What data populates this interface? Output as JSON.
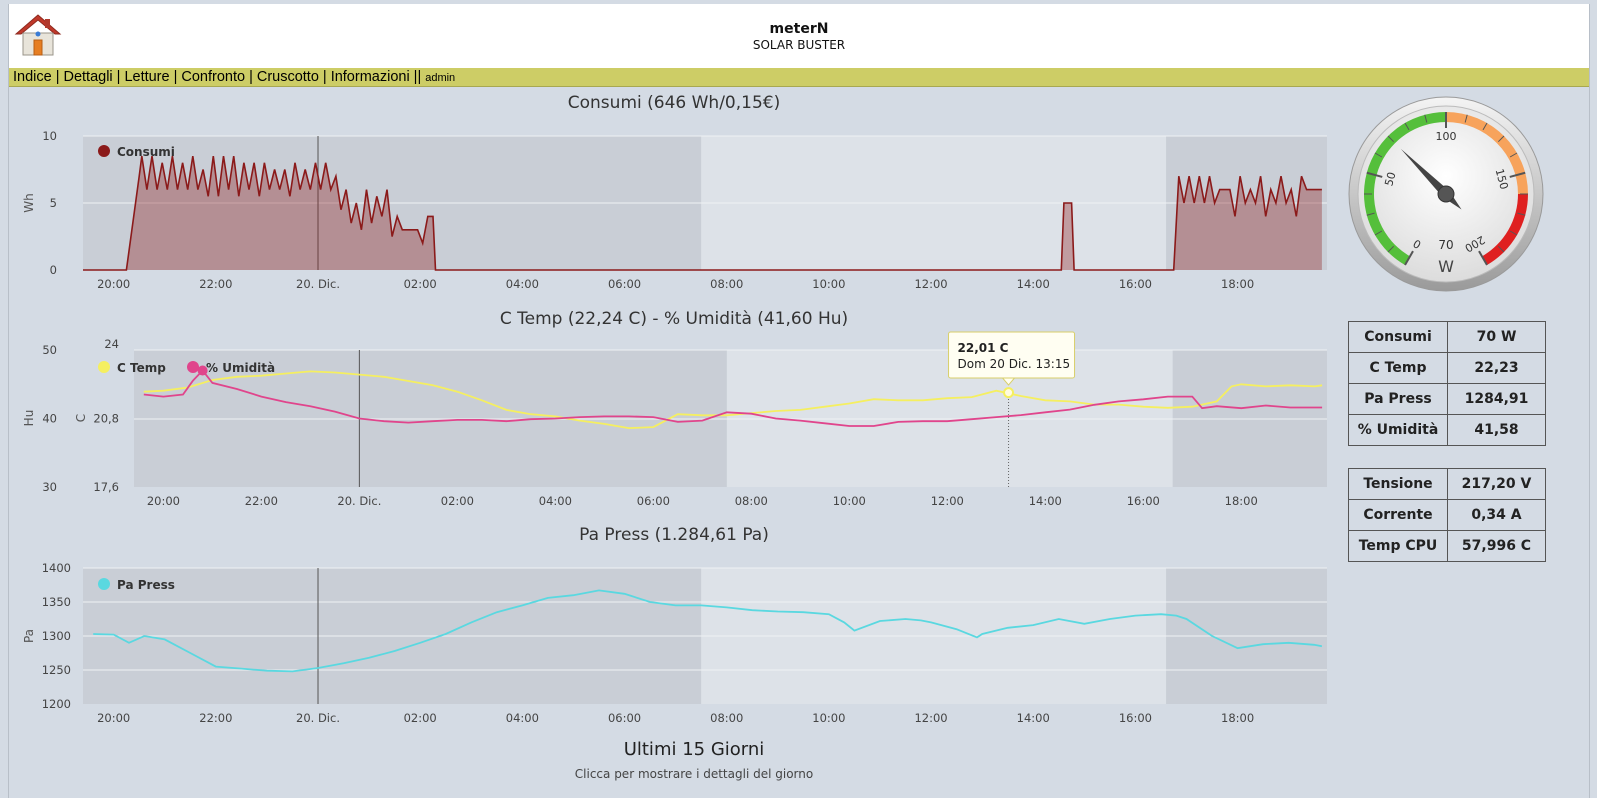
{
  "header": {
    "title": "meterN",
    "subtitle": "SOLAR BUSTER",
    "logo_icon": "house-icon"
  },
  "nav": {
    "items": [
      "Indice",
      "Dettagli",
      "Letture",
      "Confronto",
      "Cruscotto",
      "Informazioni"
    ],
    "user": "admin"
  },
  "gauge": {
    "value": 70,
    "value_label": "70",
    "unit": "W",
    "min": 0,
    "max": 200,
    "tick_labels": [
      "0",
      "50",
      "100",
      "150",
      "200"
    ],
    "bands": [
      {
        "from": 0,
        "to": 100,
        "color": "#55bf3b"
      },
      {
        "from": 100,
        "to": 160,
        "color": "#f7a35c"
      },
      {
        "from": 160,
        "to": 200,
        "color": "#df2020"
      }
    ]
  },
  "info_table_1": [
    {
      "label": "Consumi",
      "value": "70 W"
    },
    {
      "label": "C Temp",
      "value": "22,23"
    },
    {
      "label": "Pa Press",
      "value": "1284,91"
    },
    {
      "label": "% Umidità",
      "value": "41,58"
    }
  ],
  "info_table_2": [
    {
      "label": "Tensione",
      "value": "217,20 V"
    },
    {
      "label": "Corrente",
      "value": "0,34 A"
    },
    {
      "label": "Temp CPU",
      "value": "57,996 C"
    }
  ],
  "footer": {
    "title": "Ultimi 15 Giorni",
    "subtitle": "Clicca per mostrare i dettagli del giorno"
  },
  "chart_data": [
    {
      "type": "area",
      "title": "Consumi (646 Wh/0,15€)",
      "ylabel": "Wh",
      "ylim": [
        0,
        10
      ],
      "yticks": [
        "0",
        "5",
        "10"
      ],
      "xlim": [
        19.4,
        43.75
      ],
      "xticks": [
        "20:00",
        "22:00",
        "20. Dic.",
        "02:00",
        "04:00",
        "06:00",
        "08:00",
        "10:00",
        "12:00",
        "14:00",
        "16:00",
        "18:00"
      ],
      "night_bands": [
        [
          19.4,
          31.5
        ],
        [
          40.6,
          43.75
        ]
      ],
      "midnight": 24,
      "legend": "top-left",
      "series": [
        {
          "name": "Consumi",
          "color": "#8b1a1a",
          "x": [
            19.4,
            20.25,
            20.5,
            20.55,
            20.65,
            20.75,
            20.85,
            20.95,
            21.05,
            21.15,
            21.25,
            21.35,
            21.45,
            21.55,
            21.65,
            21.75,
            21.85,
            21.95,
            22.05,
            22.15,
            22.25,
            22.35,
            22.45,
            22.55,
            22.65,
            22.75,
            22.85,
            22.95,
            23.05,
            23.15,
            23.25,
            23.35,
            23.45,
            23.55,
            23.65,
            23.75,
            23.85,
            23.95,
            24.05,
            24.15,
            24.25,
            24.35,
            24.45,
            24.55,
            24.65,
            24.75,
            24.85,
            24.95,
            25.05,
            25.15,
            25.25,
            25.35,
            25.45,
            25.55,
            25.65,
            25.75,
            25.85,
            25.95,
            26.05,
            26.15,
            26.25,
            26.3,
            26.35,
            26.4,
            38.55,
            38.6,
            38.65,
            38.75,
            38.8,
            38.85,
            40.75,
            40.85,
            40.95,
            41.05,
            41.15,
            41.25,
            41.35,
            41.45,
            41.55,
            41.65,
            41.75,
            41.85,
            41.95,
            42.05,
            42.15,
            42.25,
            42.35,
            42.45,
            42.55,
            42.65,
            42.75,
            42.85,
            42.95,
            43.05,
            43.15,
            43.25,
            43.35,
            43.45,
            43.55,
            43.65
          ],
          "values": [
            0,
            0,
            7,
            8.5,
            6,
            8.5,
            6,
            8,
            6,
            8.5,
            6,
            8,
            6,
            8.5,
            6,
            7.5,
            5.5,
            8.5,
            5.5,
            8.5,
            6,
            8.5,
            5.5,
            8,
            6,
            8,
            5.5,
            8,
            6,
            7.5,
            6,
            7.5,
            5.5,
            8,
            6,
            7.5,
            6,
            8,
            6,
            8,
            6,
            7,
            4.5,
            6,
            3.5,
            5,
            3,
            6,
            3.5,
            5.5,
            4,
            6,
            2.5,
            4,
            3,
            3,
            3,
            3,
            2,
            4,
            4,
            0,
            0,
            0,
            0,
            5,
            5,
            5,
            0,
            0,
            0,
            7,
            5,
            7,
            5,
            7,
            5,
            7,
            5,
            6,
            6,
            6,
            4,
            7,
            5,
            6,
            5,
            7,
            4,
            6,
            5,
            7,
            5,
            6,
            4,
            7,
            6,
            6,
            6,
            6
          ]
        }
      ]
    },
    {
      "type": "line",
      "title": "C Temp (22,24 C) - % Umidità (41,60 Hu)",
      "ylabel_left": "Hu",
      "ylabel_right": "C",
      "yticks_hu": [
        "30",
        "40",
        "50"
      ],
      "yticks_c": [
        "17,6",
        "20,8",
        "24"
      ],
      "ylim_hu": [
        30,
        50
      ],
      "ylim_c": [
        17.6,
        24
      ],
      "xlim": [
        19.4,
        43.75
      ],
      "xticks": [
        "20:00",
        "22:00",
        "20. Dic.",
        "02:00",
        "04:00",
        "06:00",
        "08:00",
        "10:00",
        "12:00",
        "14:00",
        "16:00",
        "18:00"
      ],
      "night_bands": [
        [
          19.4,
          31.5
        ],
        [
          40.6,
          43.75
        ]
      ],
      "midnight": 24,
      "legend": "top-left",
      "tooltip": {
        "value": "22,01 C",
        "time": "Dom 20 Dic. 13:15",
        "x": 37.25
      },
      "series": [
        {
          "name": "C Temp",
          "color": "#f5ef60",
          "axis": "C",
          "x": [
            19.6,
            20.0,
            20.5,
            21.0,
            21.5,
            22.0,
            22.5,
            23.0,
            23.5,
            24.0,
            24.5,
            25.0,
            25.5,
            26.0,
            26.5,
            27.0,
            27.5,
            28.0,
            28.5,
            29.0,
            29.5,
            30.0,
            30.5,
            31.0,
            31.5,
            32.0,
            32.5,
            33.0,
            33.5,
            34.0,
            34.5,
            35.0,
            35.5,
            36.0,
            36.5,
            37.0,
            37.5,
            38.0,
            38.5,
            39.0,
            39.5,
            40.0,
            40.5,
            41.0,
            41.5,
            41.8,
            42.0,
            42.5,
            43.0,
            43.5,
            43.65
          ],
          "values": [
            22.05,
            22.1,
            22.25,
            22.6,
            22.75,
            22.8,
            22.9,
            23.0,
            22.95,
            22.85,
            22.75,
            22.55,
            22.35,
            22.05,
            21.65,
            21.2,
            21.0,
            20.9,
            20.7,
            20.55,
            20.35,
            20.4,
            21.0,
            20.95,
            20.95,
            21.05,
            21.15,
            21.2,
            21.35,
            21.5,
            21.7,
            21.65,
            21.65,
            21.75,
            21.8,
            22.1,
            21.85,
            21.65,
            21.6,
            21.45,
            21.45,
            21.35,
            21.3,
            21.35,
            21.6,
            22.3,
            22.4,
            22.3,
            22.35,
            22.3,
            22.35
          ]
        },
        {
          "name": "% Umidità",
          "color": "#e0458c",
          "axis": "Hu",
          "x": [
            19.6,
            20.0,
            20.4,
            20.6,
            20.8,
            21.0,
            21.5,
            22.0,
            22.5,
            23.0,
            23.5,
            24.0,
            24.5,
            25.0,
            25.5,
            26.0,
            26.5,
            27.0,
            27.5,
            28.0,
            28.5,
            29.0,
            29.5,
            30.0,
            30.5,
            31.0,
            31.5,
            32.0,
            32.5,
            33.0,
            33.5,
            34.0,
            34.5,
            35.0,
            35.5,
            36.0,
            36.5,
            37.0,
            37.5,
            38.0,
            38.5,
            39.0,
            39.5,
            40.0,
            40.5,
            41.0,
            41.2,
            41.5,
            42.0,
            42.5,
            43.0,
            43.5,
            43.65
          ],
          "values": [
            43.5,
            43.2,
            43.5,
            45.5,
            47.0,
            45.2,
            44.3,
            43.2,
            42.4,
            41.8,
            41.0,
            40.0,
            39.6,
            39.4,
            39.6,
            39.8,
            39.8,
            39.6,
            39.9,
            40.0,
            40.2,
            40.3,
            40.3,
            40.2,
            39.5,
            39.7,
            40.9,
            40.7,
            40.0,
            39.7,
            39.3,
            38.9,
            38.9,
            39.5,
            39.6,
            39.6,
            39.9,
            40.2,
            40.5,
            40.9,
            41.3,
            42.0,
            42.5,
            42.8,
            43.2,
            43.2,
            41.5,
            41.8,
            41.5,
            41.9,
            41.6,
            41.6,
            41.6
          ]
        }
      ]
    },
    {
      "type": "line",
      "title": "Pa Press (1.284,61 Pa)",
      "ylabel": "Pa",
      "ylim": [
        1200,
        1400
      ],
      "yticks": [
        "1200",
        "1250",
        "1300",
        "1350",
        "1400"
      ],
      "xlim": [
        19.4,
        43.75
      ],
      "xticks": [
        "20:00",
        "22:00",
        "20. Dic.",
        "02:00",
        "04:00",
        "06:00",
        "08:00",
        "10:00",
        "12:00",
        "14:00",
        "16:00",
        "18:00"
      ],
      "night_bands": [
        [
          19.4,
          31.5
        ],
        [
          40.6,
          43.75
        ]
      ],
      "midnight": 24,
      "legend": "top-left",
      "series": [
        {
          "name": "Pa Press",
          "color": "#5ad8e0",
          "x": [
            19.6,
            20.0,
            20.3,
            20.6,
            21.0,
            21.5,
            22.0,
            22.5,
            23.0,
            23.5,
            24.0,
            24.5,
            25.0,
            25.5,
            26.0,
            26.5,
            27.0,
            27.5,
            28.0,
            28.5,
            29.0,
            29.5,
            30.0,
            30.5,
            31.0,
            31.5,
            32.0,
            32.5,
            33.0,
            33.5,
            34.0,
            34.3,
            34.5,
            35.0,
            35.5,
            35.8,
            36.0,
            36.5,
            36.9,
            37.0,
            37.5,
            38.0,
            38.5,
            39.0,
            39.5,
            40.0,
            40.5,
            40.8,
            41.0,
            41.5,
            42.0,
            42.5,
            43.0,
            43.5,
            43.65
          ],
          "values": [
            1303,
            1302,
            1290,
            1300,
            1295,
            1275,
            1255,
            1252,
            1249,
            1248,
            1253,
            1260,
            1268,
            1278,
            1290,
            1303,
            1320,
            1335,
            1345,
            1356,
            1360,
            1367,
            1362,
            1350,
            1345,
            1345,
            1342,
            1338,
            1336,
            1335,
            1332,
            1320,
            1308,
            1322,
            1325,
            1323,
            1320,
            1310,
            1298,
            1303,
            1312,
            1316,
            1325,
            1318,
            1325,
            1330,
            1332,
            1330,
            1325,
            1300,
            1282,
            1288,
            1290,
            1287,
            1285
          ]
        }
      ]
    }
  ]
}
